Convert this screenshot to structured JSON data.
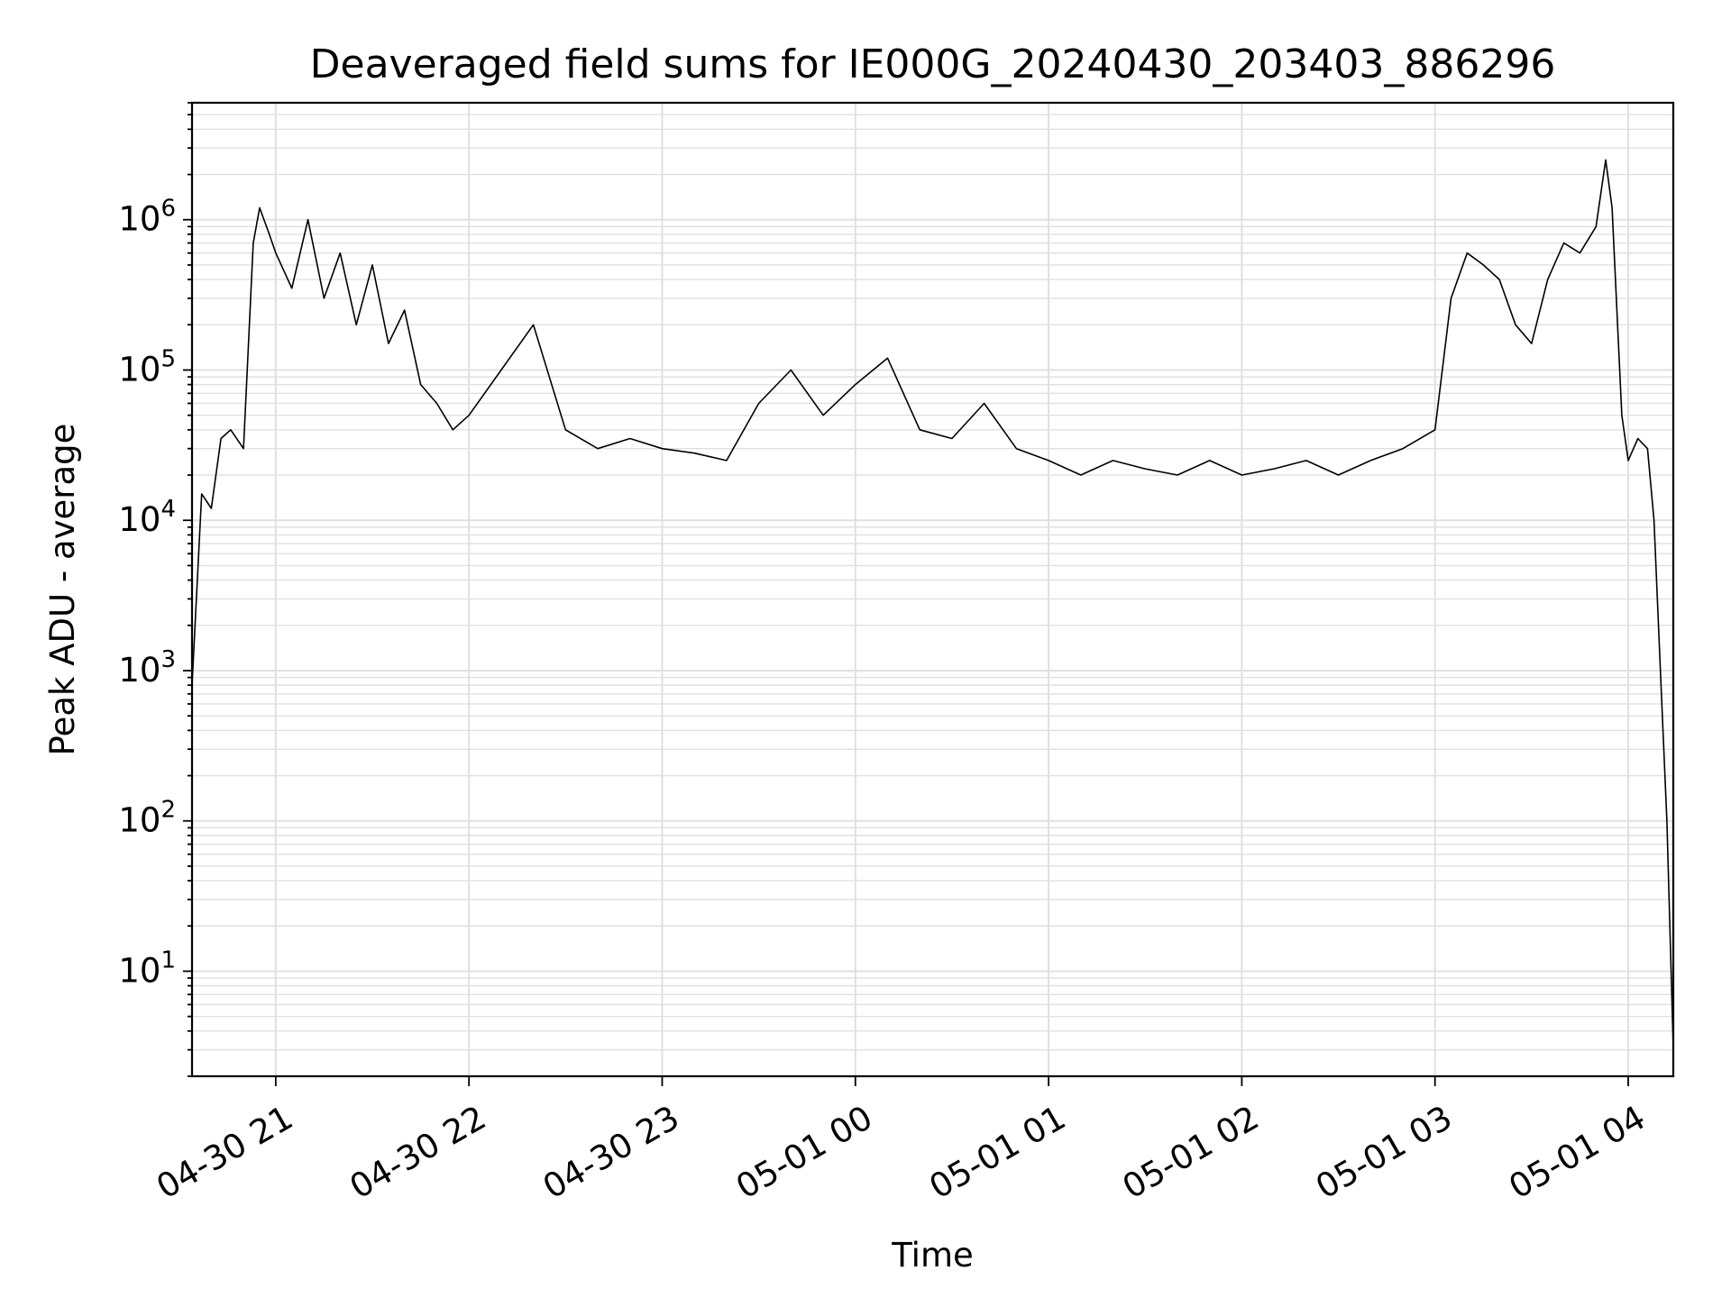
{
  "chart_data": {
    "type": "line",
    "title": "Deaveraged field sums for IE000G_20240430_203403_886296",
    "xlabel": "Time",
    "ylabel": "Peak ADU - average",
    "yscale": "log",
    "ylim": [
      2,
      6000000
    ],
    "xlim": [
      "2024-04-30 20:34:00",
      "2024-05-01 04:14:00"
    ],
    "grid": true,
    "line_color": "#000000",
    "grid_color": "#e0e0e0",
    "x_tick_labels": [
      "04-30 21",
      "04-30 22",
      "04-30 23",
      "05-01 00",
      "05-01 01",
      "05-01 02",
      "05-01 03",
      "05-01 04"
    ],
    "y_tick_labels": [
      {
        "base": "10",
        "exp": "1"
      },
      {
        "base": "10",
        "exp": "2"
      },
      {
        "base": "10",
        "exp": "3"
      },
      {
        "base": "10",
        "exp": "4"
      },
      {
        "base": "10",
        "exp": "5"
      },
      {
        "base": "10",
        "exp": "6"
      }
    ],
    "series": [
      {
        "x": [
          "2024-04-30 20:34",
          "2024-04-30 20:37",
          "2024-04-30 20:40",
          "2024-04-30 20:43",
          "2024-04-30 20:46",
          "2024-04-30 20:50",
          "2024-04-30 20:53",
          "2024-04-30 20:55",
          "2024-04-30 20:58",
          "2024-04-30 21:00",
          "2024-04-30 21:05",
          "2024-04-30 21:10",
          "2024-04-30 21:15",
          "2024-04-30 21:20",
          "2024-04-30 21:25",
          "2024-04-30 21:30",
          "2024-04-30 21:35",
          "2024-04-30 21:40",
          "2024-04-30 21:45",
          "2024-04-30 21:50",
          "2024-04-30 21:55",
          "2024-04-30 22:00",
          "2024-04-30 22:10",
          "2024-04-30 22:20",
          "2024-04-30 22:30",
          "2024-04-30 22:40",
          "2024-04-30 22:50",
          "2024-04-30 23:00",
          "2024-04-30 23:10",
          "2024-04-30 23:20",
          "2024-04-30 23:30",
          "2024-04-30 23:40",
          "2024-04-30 23:50",
          "2024-05-01 00:00",
          "2024-05-01 00:10",
          "2024-05-01 00:20",
          "2024-05-01 00:30",
          "2024-05-01 00:40",
          "2024-05-01 00:50",
          "2024-05-01 01:00",
          "2024-05-01 01:10",
          "2024-05-01 01:20",
          "2024-05-01 01:30",
          "2024-05-01 01:40",
          "2024-05-01 01:50",
          "2024-05-01 02:00",
          "2024-05-01 02:10",
          "2024-05-01 02:20",
          "2024-05-01 02:30",
          "2024-05-01 02:40",
          "2024-05-01 02:50",
          "2024-05-01 03:00",
          "2024-05-01 03:05",
          "2024-05-01 03:10",
          "2024-05-01 03:15",
          "2024-05-01 03:20",
          "2024-05-01 03:25",
          "2024-05-01 03:30",
          "2024-05-01 03:35",
          "2024-05-01 03:40",
          "2024-05-01 03:45",
          "2024-05-01 03:50",
          "2024-05-01 03:53",
          "2024-05-01 03:55",
          "2024-05-01 03:58",
          "2024-05-01 04:00",
          "2024-05-01 04:03",
          "2024-05-01 04:06",
          "2024-05-01 04:08",
          "2024-05-01 04:10",
          "2024-05-01 04:12",
          "2024-05-01 04:14"
        ],
        "y": [
          800,
          15000,
          12000,
          35000,
          40000,
          30000,
          700000,
          1200000,
          800000,
          600000,
          350000,
          1000000,
          300000,
          600000,
          200000,
          500000,
          150000,
          250000,
          80000,
          60000,
          40000,
          50000,
          100000,
          200000,
          40000,
          30000,
          35000,
          30000,
          28000,
          25000,
          60000,
          100000,
          50000,
          80000,
          120000,
          40000,
          35000,
          60000,
          30000,
          25000,
          20000,
          25000,
          22000,
          20000,
          25000,
          20000,
          22000,
          25000,
          20000,
          25000,
          30000,
          40000,
          300000,
          600000,
          500000,
          400000,
          200000,
          150000,
          400000,
          700000,
          600000,
          900000,
          2500000,
          1200000,
          50000,
          25000,
          35000,
          30000,
          10000,
          1000,
          100,
          3
        ]
      }
    ]
  }
}
